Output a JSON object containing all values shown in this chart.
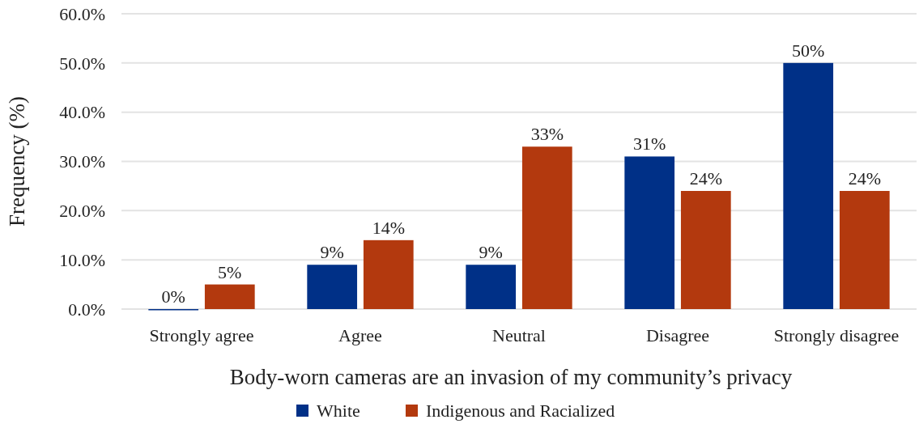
{
  "chart_data": {
    "type": "bar",
    "xlabel": "Body-worn cameras are an invasion of my community’s privacy",
    "ylabel": "Frequency (%)",
    "categories": [
      "Strongly agree",
      "Agree",
      "Neutral",
      "Disagree",
      "Strongly disagree"
    ],
    "series": [
      {
        "name": "White",
        "color": "#003087",
        "values": [
          0,
          9,
          9,
          31,
          50
        ],
        "value_labels": [
          "0%",
          "9%",
          "9%",
          "31%",
          "50%"
        ]
      },
      {
        "name": "Indigenous and Racialized",
        "color": "#b3390e",
        "values": [
          5,
          14,
          33,
          24,
          24
        ],
        "value_labels": [
          "5%",
          "14%",
          "33%",
          "24%",
          "24%"
        ]
      }
    ],
    "ylim": [
      0,
      60
    ],
    "yticks": [
      {
        "value": 0,
        "label": "0.0%"
      },
      {
        "value": 10,
        "label": "10.0%"
      },
      {
        "value": 20,
        "label": "20.0%"
      },
      {
        "value": 30,
        "label": "30.0%"
      },
      {
        "value": 40,
        "label": "40.0%"
      },
      {
        "value": 50,
        "label": "50.0%"
      },
      {
        "value": 60,
        "label": "60.0%"
      }
    ],
    "grid": "y",
    "legend": "bottom"
  }
}
